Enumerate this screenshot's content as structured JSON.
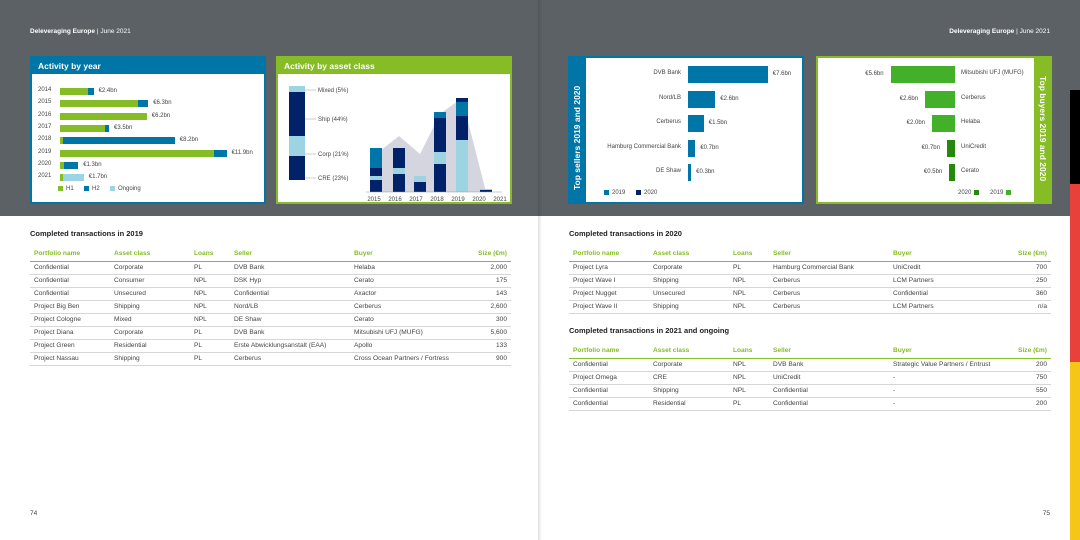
{
  "header": {
    "title": "Deleveraging Europe",
    "date": "June 2021"
  },
  "colors": {
    "green": "#86bc25",
    "teal": "#0097a9",
    "navy": "#012169",
    "lightblue": "#9dd4e2",
    "blue": "#0076a8"
  },
  "activity_by_year": {
    "title": "Activity by year",
    "legend": [
      "H1",
      "H2",
      "Ongoing"
    ],
    "rows": [
      {
        "year": "2014",
        "label": "€2.4bn",
        "h1": 2.0,
        "h2": 0.4,
        "ongoing": 0
      },
      {
        "year": "2015",
        "label": "€6.3bn",
        "h1": 5.6,
        "h2": 0.7,
        "ongoing": 0
      },
      {
        "year": "2016",
        "label": "€6.2bn",
        "h1": 6.2,
        "h2": 0,
        "ongoing": 0
      },
      {
        "year": "2017",
        "label": "€3.5bn",
        "h1": 3.2,
        "h2": 0.3,
        "ongoing": 0
      },
      {
        "year": "2018",
        "label": "€8.2bn",
        "h1": 0.2,
        "h2": 8.0,
        "ongoing": 0
      },
      {
        "year": "2019",
        "label": "€11.9bn",
        "h1": 11.0,
        "h2": 0.9,
        "ongoing": 0
      },
      {
        "year": "2020",
        "label": "€1.3bn",
        "h1": 0.3,
        "h2": 1.0,
        "ongoing": 0
      },
      {
        "year": "2021",
        "label": "€1.7bn",
        "h1": 0.2,
        "h2": 0,
        "ongoing": 1.5
      }
    ]
  },
  "activity_by_asset": {
    "title": "Activity by asset class",
    "legend": [
      "Mixed (5%)",
      "Ship (44%)",
      "Corp (21%)",
      "CRE (23%)"
    ],
    "years": [
      "2015",
      "2016",
      "2017",
      "2018",
      "2019",
      "2020",
      "2021"
    ]
  },
  "top_sellers": {
    "title": "Top sellers 2019 and 2020",
    "legend": [
      "2019",
      "2020"
    ],
    "rows": [
      {
        "name": "DVB Bank",
        "label": "€7.6bn",
        "value": 7.6
      },
      {
        "name": "Nord/LB",
        "label": "€2.6bn",
        "value": 2.6
      },
      {
        "name": "Cerberus",
        "label": "€1.5bn",
        "value": 1.5
      },
      {
        "name": "Hamburg Commercial Bank",
        "label": "€0.7bn",
        "value": 0.7
      },
      {
        "name": "DE Shaw",
        "label": "€0.3bn",
        "value": 0.3
      }
    ]
  },
  "top_buyers": {
    "title": "Top buyers 2019 and 2020",
    "legend": [
      "2020",
      "2019"
    ],
    "rows": [
      {
        "name": "Mitsubishi UFJ (MUFG)",
        "label": "€5.6bn",
        "value": 5.6
      },
      {
        "name": "Cerberus",
        "label": "€2.6bn",
        "value": 2.6
      },
      {
        "name": "Helaba",
        "label": "€2.0bn",
        "value": 2.0
      },
      {
        "name": "UniCredit",
        "label": "€0.7bn",
        "value": 0.7
      },
      {
        "name": "Cerato",
        "label": "€0.5bn",
        "value": 0.5
      }
    ]
  },
  "table_columns": [
    "Portfolio name",
    "Asset class",
    "Loans",
    "Seller",
    "Buyer",
    "Size (€m)"
  ],
  "tx2019": {
    "title": "Completed transactions in 2019",
    "rows": [
      [
        "Confidential",
        "Corporate",
        "PL",
        "DVB Bank",
        "Helaba",
        "2,000"
      ],
      [
        "Confidential",
        "Consumer",
        "NPL",
        "DSK Hyp",
        "Cerato",
        "175"
      ],
      [
        "Confidential",
        "Unsecured",
        "NPL",
        "Confidential",
        "Axactor",
        "143"
      ],
      [
        "Project Big Ben",
        "Shipping",
        "NPL",
        "Nord/LB",
        "Cerberus",
        "2,600"
      ],
      [
        "Project Cologne",
        "Mixed",
        "NPL",
        "DE Shaw",
        "Cerato",
        "300"
      ],
      [
        "Project Diana",
        "Corporate",
        "PL",
        "DVB Bank",
        "Mitsubishi UFJ (MUFG)",
        "5,600"
      ],
      [
        "Project Green",
        "Residential",
        "PL",
        "Erste Abwicklungsanstalt (EAA)",
        "Apollo",
        "133"
      ],
      [
        "Project Nassau",
        "Shipping",
        "PL",
        "Cerberus",
        "Cross Ocean Partners / Fortress",
        "900"
      ]
    ]
  },
  "tx2020": {
    "title": "Completed transactions in 2020",
    "rows": [
      [
        "Project Lyra",
        "Corporate",
        "PL",
        "Hamburg Commercial Bank",
        "UniCredit",
        "700"
      ],
      [
        "Project Wave I",
        "Shipping",
        "NPL",
        "Cerberus",
        "LCM Partners",
        "250"
      ],
      [
        "Project Nugget",
        "Unsecured",
        "NPL",
        "Cerberus",
        "Confidential",
        "360"
      ],
      [
        "Project Wave II",
        "Shipping",
        "NPL",
        "Cerberus",
        "LCM Partners",
        "n/a"
      ]
    ]
  },
  "tx2021": {
    "title": "Completed transactions in 2021 and ongoing",
    "rows": [
      [
        "Confidential",
        "Corporate",
        "NPL",
        "DVB Bank",
        "Strategic Value Partners / Entrust",
        "200"
      ],
      [
        "Project Omega",
        "CRE",
        "NPL",
        "UniCredit",
        "-",
        "750"
      ],
      [
        "Confidential",
        "Shipping",
        "NPL",
        "Confidential",
        "-",
        "550"
      ],
      [
        "Confidential",
        "Residential",
        "PL",
        "Confidential",
        "-",
        "200"
      ]
    ]
  },
  "page_left": "74",
  "page_right": "75"
}
